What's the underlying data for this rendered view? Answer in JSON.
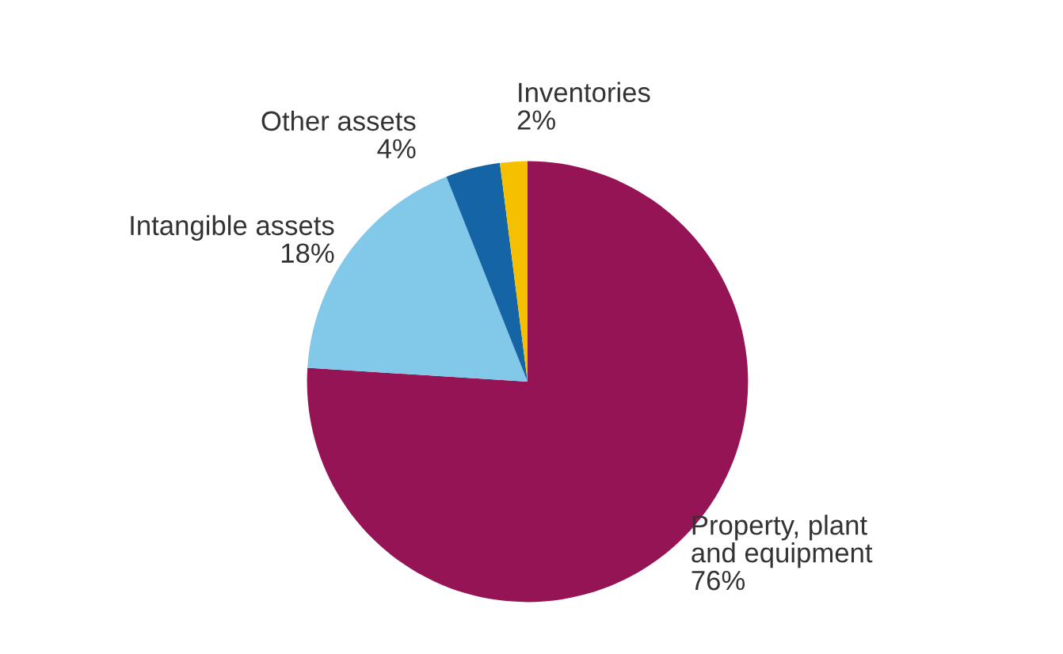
{
  "chart_data": {
    "type": "pie",
    "categories": [
      "Property, plant\nand equipment",
      "Intangible assets",
      "Other assets",
      "Inventories"
    ],
    "values": [
      76,
      18,
      4,
      2
    ],
    "value_labels": [
      "76%",
      "18%",
      "4%",
      "2%"
    ],
    "colors": [
      "#951456",
      "#82c8e8",
      "#1565a6",
      "#f5c000"
    ]
  }
}
